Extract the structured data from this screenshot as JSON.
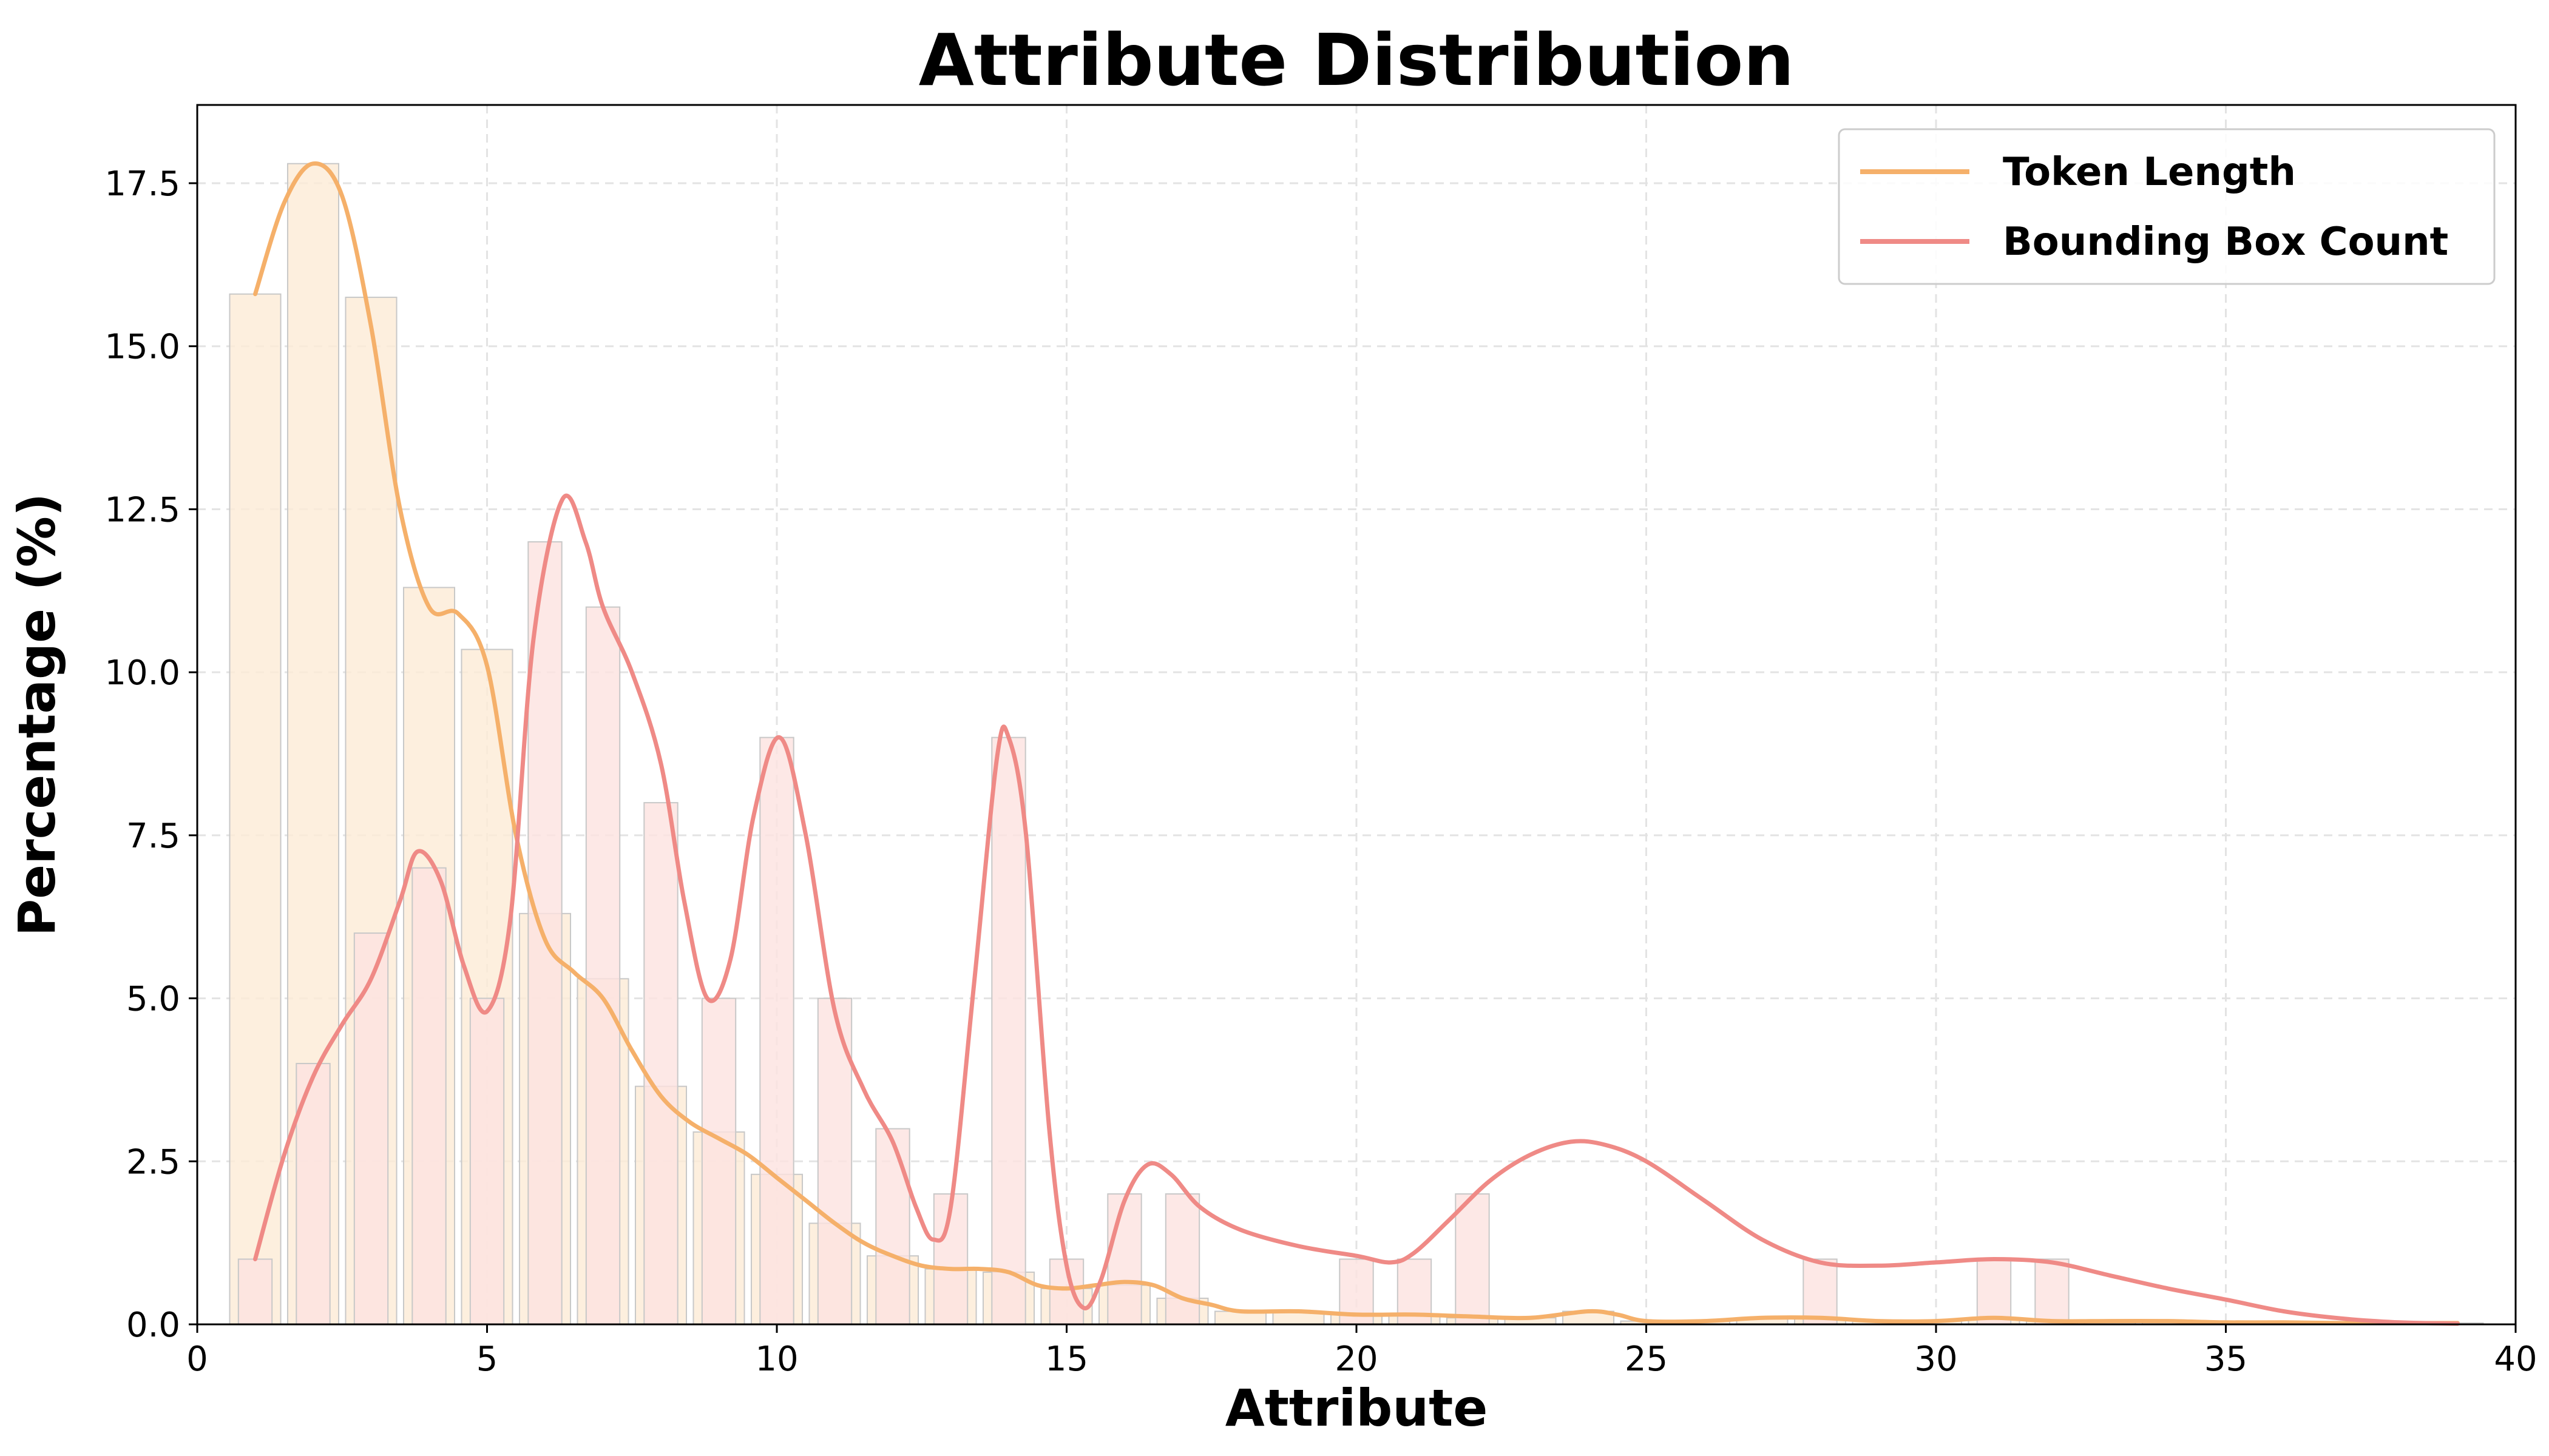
{
  "chart_data": {
    "type": "bar",
    "title": "Attribute Distribution",
    "xlabel": "Attribute",
    "ylabel": "Percentage (%)",
    "xlim": [
      0,
      40
    ],
    "ylim": [
      0,
      18.7
    ],
    "xticks": [
      0,
      5,
      10,
      15,
      20,
      25,
      30,
      35,
      40
    ],
    "xtick_labels": [
      "0",
      "5",
      "10",
      "15",
      "20",
      "25",
      "30",
      "35",
      "40"
    ],
    "yticks": [
      0,
      2.5,
      5,
      7.5,
      10,
      12.5,
      15,
      17.5
    ],
    "ytick_labels": [
      "0.0",
      "2.5",
      "5.0",
      "7.5",
      "10.0",
      "12.5",
      "15.0",
      "17.5"
    ],
    "grid": true,
    "legend_position": "top-right",
    "series": [
      {
        "name": "Token Length",
        "color": "#f5b06a",
        "fill": "#fdebd6",
        "histogram": [
          {
            "x": 1,
            "y": 15.8
          },
          {
            "x": 2,
            "y": 17.8
          },
          {
            "x": 3,
            "y": 15.75
          },
          {
            "x": 4,
            "y": 11.3
          },
          {
            "x": 5,
            "y": 10.35
          },
          {
            "x": 6,
            "y": 6.3
          },
          {
            "x": 7,
            "y": 5.3
          },
          {
            "x": 8,
            "y": 3.65
          },
          {
            "x": 9,
            "y": 2.95
          },
          {
            "x": 10,
            "y": 2.3
          },
          {
            "x": 11,
            "y": 1.55
          },
          {
            "x": 12,
            "y": 1.05
          },
          {
            "x": 13,
            "y": 0.85
          },
          {
            "x": 14,
            "y": 0.8
          },
          {
            "x": 15,
            "y": 0.55
          },
          {
            "x": 16,
            "y": 0.6
          },
          {
            "x": 17,
            "y": 0.4
          },
          {
            "x": 18,
            "y": 0.2
          },
          {
            "x": 19,
            "y": 0.2
          },
          {
            "x": 20,
            "y": 0.15
          },
          {
            "x": 21,
            "y": 0.15
          },
          {
            "x": 22,
            "y": 0.1
          },
          {
            "x": 23,
            "y": 0.1
          },
          {
            "x": 24,
            "y": 0.2
          },
          {
            "x": 25,
            "y": 0.05
          },
          {
            "x": 26,
            "y": 0.05
          },
          {
            "x": 27,
            "y": 0.1
          },
          {
            "x": 28,
            "y": 0.1
          },
          {
            "x": 29,
            "y": 0.05
          },
          {
            "x": 30,
            "y": 0.05
          },
          {
            "x": 31,
            "y": 0.1
          },
          {
            "x": 32,
            "y": 0.05
          },
          {
            "x": 33,
            "y": 0.05
          },
          {
            "x": 34,
            "y": 0.05
          },
          {
            "x": 35,
            "y": 0.03
          },
          {
            "x": 36,
            "y": 0.03
          },
          {
            "x": 37,
            "y": 0.02
          },
          {
            "x": 38,
            "y": 0.02
          },
          {
            "x": 39,
            "y": 0.02
          }
        ],
        "kde": [
          [
            1,
            15.8
          ],
          [
            1.5,
            17.2
          ],
          [
            2,
            17.8
          ],
          [
            2.5,
            17.3
          ],
          [
            3,
            15.3
          ],
          [
            3.5,
            12.5
          ],
          [
            4,
            11.0
          ],
          [
            4.5,
            10.9
          ],
          [
            5,
            10.1
          ],
          [
            5.5,
            7.5
          ],
          [
            6,
            5.9
          ],
          [
            6.5,
            5.4
          ],
          [
            7,
            5.0
          ],
          [
            7.5,
            4.2
          ],
          [
            8,
            3.5
          ],
          [
            8.5,
            3.1
          ],
          [
            9,
            2.85
          ],
          [
            9.5,
            2.6
          ],
          [
            10,
            2.25
          ],
          [
            10.5,
            1.9
          ],
          [
            11,
            1.55
          ],
          [
            11.5,
            1.25
          ],
          [
            12,
            1.05
          ],
          [
            12.5,
            0.9
          ],
          [
            13,
            0.85
          ],
          [
            13.5,
            0.85
          ],
          [
            14,
            0.8
          ],
          [
            14.5,
            0.6
          ],
          [
            15,
            0.55
          ],
          [
            15.5,
            0.6
          ],
          [
            16,
            0.65
          ],
          [
            16.5,
            0.6
          ],
          [
            17,
            0.4
          ],
          [
            17.5,
            0.3
          ],
          [
            18,
            0.2
          ],
          [
            19,
            0.2
          ],
          [
            20,
            0.15
          ],
          [
            21,
            0.15
          ],
          [
            22,
            0.12
          ],
          [
            23,
            0.1
          ],
          [
            24,
            0.2
          ],
          [
            24.5,
            0.15
          ],
          [
            25,
            0.05
          ],
          [
            26,
            0.05
          ],
          [
            27,
            0.1
          ],
          [
            28,
            0.1
          ],
          [
            29,
            0.05
          ],
          [
            30,
            0.05
          ],
          [
            31,
            0.1
          ],
          [
            32,
            0.05
          ],
          [
            33,
            0.05
          ],
          [
            34,
            0.05
          ],
          [
            35,
            0.03
          ],
          [
            36,
            0.03
          ],
          [
            37,
            0.02
          ],
          [
            38,
            0.02
          ],
          [
            39,
            0.02
          ]
        ]
      },
      {
        "name": "Bounding Box Count",
        "color": "#ef8a86",
        "fill": "#fde2e0",
        "histogram": [
          {
            "x": 1,
            "y": 1
          },
          {
            "x": 2,
            "y": 4
          },
          {
            "x": 3,
            "y": 6
          },
          {
            "x": 4,
            "y": 7
          },
          {
            "x": 5,
            "y": 5
          },
          {
            "x": 6,
            "y": 12
          },
          {
            "x": 7,
            "y": 11
          },
          {
            "x": 8,
            "y": 8
          },
          {
            "x": 9,
            "y": 5
          },
          {
            "x": 10,
            "y": 9
          },
          {
            "x": 11,
            "y": 5
          },
          {
            "x": 12,
            "y": 3
          },
          {
            "x": 13,
            "y": 2
          },
          {
            "x": 14,
            "y": 9
          },
          {
            "x": 15,
            "y": 1
          },
          {
            "x": 16,
            "y": 2
          },
          {
            "x": 17,
            "y": 2
          },
          {
            "x": 20,
            "y": 1
          },
          {
            "x": 21,
            "y": 1
          },
          {
            "x": 22,
            "y": 2
          },
          {
            "x": 28,
            "y": 1
          },
          {
            "x": 31,
            "y": 1
          },
          {
            "x": 32,
            "y": 1
          }
        ],
        "kde": [
          [
            1,
            1.0
          ],
          [
            1.5,
            2.6
          ],
          [
            2,
            3.8
          ],
          [
            2.5,
            4.6
          ],
          [
            3,
            5.3
          ],
          [
            3.5,
            6.5
          ],
          [
            3.8,
            7.25
          ],
          [
            4.2,
            6.8
          ],
          [
            4.6,
            5.5
          ],
          [
            5,
            4.8
          ],
          [
            5.4,
            6.2
          ],
          [
            5.8,
            10.5
          ],
          [
            6.3,
            12.65
          ],
          [
            6.7,
            12.0
          ],
          [
            7,
            11.0
          ],
          [
            7.5,
            10.0
          ],
          [
            8,
            8.6
          ],
          [
            8.4,
            6.5
          ],
          [
            8.8,
            5.0
          ],
          [
            9.2,
            5.6
          ],
          [
            9.6,
            7.8
          ],
          [
            10.05,
            9.0
          ],
          [
            10.5,
            7.5
          ],
          [
            11,
            4.8
          ],
          [
            11.5,
            3.6
          ],
          [
            12,
            2.8
          ],
          [
            12.4,
            1.8
          ],
          [
            12.7,
            1.3
          ],
          [
            13,
            1.8
          ],
          [
            13.4,
            5.2
          ],
          [
            13.8,
            8.7
          ],
          [
            14.0,
            9.0
          ],
          [
            14.3,
            7.5
          ],
          [
            14.7,
            3.0
          ],
          [
            15.0,
            0.9
          ],
          [
            15.3,
            0.25
          ],
          [
            15.6,
            0.7
          ],
          [
            16,
            1.9
          ],
          [
            16.4,
            2.45
          ],
          [
            16.8,
            2.3
          ],
          [
            17.3,
            1.8
          ],
          [
            18,
            1.45
          ],
          [
            19,
            1.2
          ],
          [
            20,
            1.05
          ],
          [
            20.6,
            0.95
          ],
          [
            21,
            1.1
          ],
          [
            21.6,
            1.6
          ],
          [
            22.3,
            2.2
          ],
          [
            23,
            2.6
          ],
          [
            23.7,
            2.8
          ],
          [
            24.3,
            2.75
          ],
          [
            25,
            2.5
          ],
          [
            26,
            1.9
          ],
          [
            27,
            1.3
          ],
          [
            28,
            0.95
          ],
          [
            29,
            0.9
          ],
          [
            30,
            0.95
          ],
          [
            31,
            1.0
          ],
          [
            32,
            0.95
          ],
          [
            33,
            0.75
          ],
          [
            34,
            0.55
          ],
          [
            35,
            0.38
          ],
          [
            36,
            0.2
          ],
          [
            37,
            0.09
          ],
          [
            38,
            0.03
          ],
          [
            39,
            0.01
          ]
        ]
      }
    ]
  }
}
